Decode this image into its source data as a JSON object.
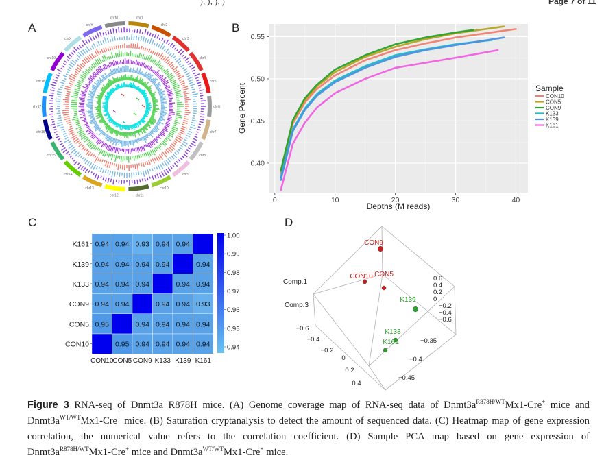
{
  "header": {
    "left_fragment": "), ), ), )",
    "right_fragment": "Page 7 of 11"
  },
  "panels": {
    "a": {
      "label": "A",
      "chromosomes": [
        "chr1",
        "chr2",
        "chr3",
        "chr4",
        "chr5",
        "chr6",
        "chr7",
        "chr8",
        "chr9",
        "chr10",
        "chr11",
        "chr12",
        "chr13",
        "chr14",
        "chr15",
        "chr16",
        "chr17",
        "chr18",
        "chr19",
        "chrX",
        "chrY",
        "chrM"
      ],
      "track_colors": [
        "#7b2cd1",
        "#6ab0e0",
        "#f26b5b",
        "#4ccf4c",
        "#9b30d9",
        "#6ab0e0",
        "#4ccf4c",
        "#00e0e0"
      ]
    },
    "b": {
      "label": "B"
    },
    "c": {
      "label": "C"
    },
    "d": {
      "label": "D"
    }
  },
  "chart_data": [
    {
      "type": "line",
      "panel": "B",
      "xlabel": "Depths (M reads)",
      "ylabel": "Gene Percent",
      "xlim": [
        -1,
        42
      ],
      "ylim": [
        0.365,
        0.565
      ],
      "xticks": [
        0,
        10,
        20,
        30,
        40
      ],
      "yticks": [
        0.4,
        0.45,
        0.5,
        0.55
      ],
      "grid": true,
      "legend_title": "Sample",
      "legend_position": "right",
      "series": [
        {
          "name": "CON10",
          "color": "#f08070",
          "x": [
            1,
            3,
            5,
            7,
            10,
            15,
            20,
            25,
            30,
            35,
            40
          ],
          "y": [
            0.388,
            0.447,
            0.472,
            0.488,
            0.504,
            0.522,
            0.534,
            0.542,
            0.549,
            0.554,
            0.559
          ]
        },
        {
          "name": "CON5",
          "color": "#b8a320",
          "x": [
            1,
            3,
            5,
            7,
            10,
            15,
            20,
            25,
            30,
            35,
            38
          ],
          "y": [
            0.39,
            0.45,
            0.475,
            0.491,
            0.508,
            0.526,
            0.538,
            0.547,
            0.554,
            0.559,
            0.562
          ]
        },
        {
          "name": "CON9",
          "color": "#2ca02c",
          "x": [
            1,
            3,
            5,
            7,
            10,
            15,
            20,
            25,
            30,
            33
          ],
          "y": [
            0.391,
            0.451,
            0.477,
            0.493,
            0.511,
            0.528,
            0.541,
            0.549,
            0.555,
            0.558
          ]
        },
        {
          "name": "K133",
          "color": "#1fb8c8",
          "x": [
            1,
            3,
            5,
            7,
            10,
            15,
            20,
            25,
            30,
            36
          ],
          "y": [
            0.383,
            0.44,
            0.465,
            0.482,
            0.498,
            0.515,
            0.528,
            0.535,
            0.541,
            0.546
          ]
        },
        {
          "name": "K139",
          "color": "#4a90e2",
          "x": [
            1,
            3,
            5,
            7,
            10,
            15,
            20,
            25,
            30,
            38
          ],
          "y": [
            0.38,
            0.438,
            0.463,
            0.48,
            0.496,
            0.513,
            0.526,
            0.534,
            0.54,
            0.549
          ]
        },
        {
          "name": "K161",
          "color": "#f060e0",
          "x": [
            1,
            3,
            5,
            7,
            10,
            15,
            20,
            25,
            30,
            37
          ],
          "y": [
            0.368,
            0.423,
            0.448,
            0.466,
            0.483,
            0.5,
            0.513,
            0.519,
            0.525,
            0.534
          ]
        }
      ]
    },
    {
      "type": "heatmap",
      "panel": "C",
      "x_labels": [
        "CON10",
        "CON5",
        "CON9",
        "K133",
        "K139",
        "K161"
      ],
      "y_labels": [
        "K161",
        "K139",
        "K133",
        "CON9",
        "CON5",
        "CON10"
      ],
      "values": [
        [
          "0.94",
          "0.94",
          "0.93",
          "0.94",
          "0.94",
          ""
        ],
        [
          "0.94",
          "0.94",
          "0.94",
          "0.94",
          "",
          "0.94"
        ],
        [
          "0.94",
          "0.94",
          "0.94",
          "",
          "0.94",
          "0.94"
        ],
        [
          "0.94",
          "0.94",
          "",
          "0.94",
          "0.94",
          "0.93"
        ],
        [
          "0.95",
          "",
          "0.94",
          "0.94",
          "0.94",
          "0.94"
        ],
        [
          "",
          "0.95",
          "0.94",
          "0.94",
          "0.94",
          "0.94"
        ]
      ],
      "colorbar_ticks": [
        "1.00",
        "0.99",
        "0.98",
        "0.97",
        "0.96",
        "0.95",
        "0.94"
      ],
      "colormap": [
        "#68c3f0",
        "#0000ee"
      ],
      "diagonal_color": "#0000ee",
      "cell_color": "#5aa2e8"
    },
    {
      "type": "scatter",
      "panel": "D",
      "projection": "3d",
      "axis_labels": [
        "Comp.1",
        "Comp.3"
      ],
      "right_ticks": [
        "0.6",
        "0.4",
        "0.2",
        "0",
        "−0.2",
        "−0.4",
        "−0.6"
      ],
      "lower_right_ticks": [
        "−0.35",
        "−0.4",
        "−0.45"
      ],
      "left_ticks": [
        "−0.6",
        "−0.4",
        "−0.2",
        "0",
        "0.2",
        "0.4"
      ],
      "points": [
        {
          "name": "CON9",
          "group": "CON",
          "color": "#c41e1e"
        },
        {
          "name": "CON10",
          "group": "CON",
          "color": "#c41e1e"
        },
        {
          "name": "CON5",
          "group": "CON",
          "color": "#c41e1e"
        },
        {
          "name": "K139",
          "group": "K",
          "color": "#2ca02c"
        },
        {
          "name": "K133",
          "group": "K",
          "color": "#2ca02c"
        },
        {
          "name": "K161",
          "group": "K",
          "color": "#2ca02c"
        }
      ]
    }
  ],
  "caption": {
    "label": "Figure 3",
    "p1": "RNA-seq of Dnmt3a R878H mice. (A) Genome coverage map of RNA-seq data of Dnmt3a",
    "sup1": "R878H/WT",
    "p2": "Mx1-Cre",
    "sup2": "+",
    "p3": "mice and Dnmt3a",
    "sup3": "WT/WT",
    "p4": "Mx1-Cre",
    "sup4": "+",
    "p5": "mice. (B) Saturation cryptanalysis to detect the amount of sequenced data. (C) Heatmap map of gene expression correlation, the numerical value refers to the correlation coefficient. (D) Sample PCA map based on gene expression of Dnmt3a",
    "sup5": "R878H/WT",
    "p6": "Mx1-Cre",
    "sup6": "+",
    "p7": "mice and Dnmt3a",
    "sup7": "WT/WT",
    "p8": "Mx1-Cre",
    "sup8": "+",
    "p9": "mice."
  }
}
